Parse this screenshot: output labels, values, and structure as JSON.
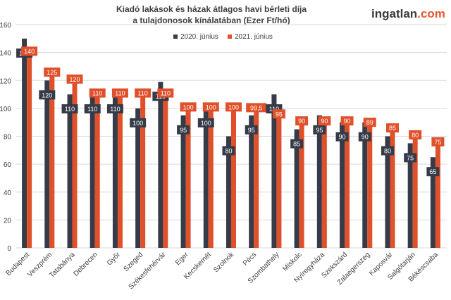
{
  "header": {
    "title_line1": "Kiadó lakások és házak átlagos havi bérleti díja",
    "title_line2": "a tulajdonosok kínálatában (Ezer Ft/hó)"
  },
  "logo": {
    "main": "ingatlan",
    "dot_com": ".com"
  },
  "colors": {
    "series_2020": "#353b48",
    "series_2021": "#e0502a",
    "grid": "#d9d9d9",
    "axis_text": "#404040"
  },
  "chart_data": {
    "type": "bar",
    "title": "Kiadó lakások és házak átlagos havi bérleti díja a tulajdonosok kínálatában (Ezer Ft/hó)",
    "ylim": [
      0,
      160
    ],
    "yticks": [
      0,
      20,
      40,
      60,
      80,
      100,
      120,
      140,
      160
    ],
    "grid": true,
    "legend_position": "top-center",
    "categories": [
      "Budapest",
      "Veszprém",
      "Tatabánya",
      "Debrecen",
      "Győr",
      "Szeged",
      "Székesfehérvár",
      "Eger",
      "Kecskemét",
      "Szolnok",
      "Pécs",
      "Szombathely",
      "Miskolc",
      "Nyíregyháza",
      "Szekszárd",
      "Zalaegerszeg",
      "Kaposvár",
      "Salgótarján",
      "Békéscsaba"
    ],
    "series": [
      {
        "name": "2020. június",
        "color": "#353b48",
        "values": [
          150,
          120,
          110,
          110,
          110,
          100,
          119,
          95,
          100,
          80,
          95,
          110,
          85,
          95,
          90,
          90,
          80,
          75,
          65
        ],
        "labels": [
          "150",
          "120",
          "110",
          "110",
          "110",
          "100",
          "119",
          "95",
          "100",
          "80",
          "95",
          "110",
          "85",
          "95",
          "90",
          "90",
          "80",
          "75",
          "65"
        ]
      },
      {
        "name": "2021. június",
        "color": "#e0502a",
        "values": [
          140,
          125,
          120,
          110,
          110,
          110,
          110,
          100,
          100,
          100,
          99.5,
          95,
          90,
          90,
          90,
          89,
          85,
          80,
          75
        ],
        "labels": [
          "140",
          "125",
          "120",
          "110",
          "110",
          "110",
          "110",
          "100",
          "100",
          "100",
          "99,5",
          "95",
          "90",
          "90",
          "90",
          "89",
          "85",
          "80",
          "75"
        ]
      }
    ]
  }
}
